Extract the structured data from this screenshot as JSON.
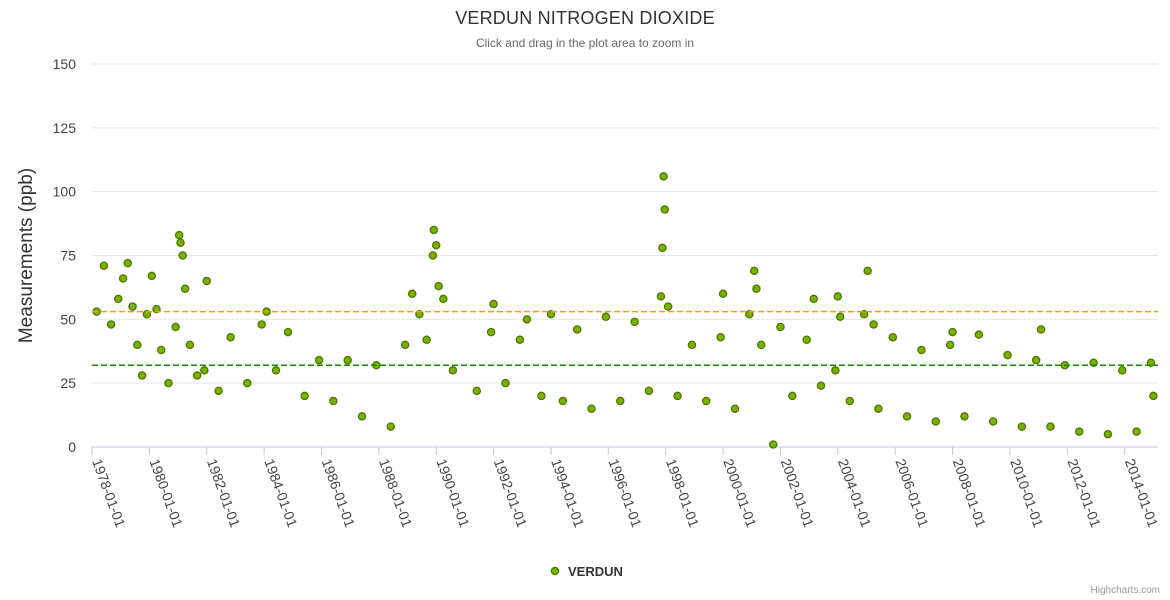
{
  "chart_data": {
    "type": "scatter",
    "title": "VERDUN NITROGEN DIOXIDE",
    "subtitle": "Click and drag in the plot area to zoom in",
    "ylabel": "Measurements (ppb)",
    "ylim": [
      0,
      150
    ],
    "y_ticks": [
      0,
      25,
      50,
      75,
      100,
      125,
      150
    ],
    "x_ticks": [
      "1978-01-01",
      "1980-01-01",
      "1982-01-01",
      "1984-01-01",
      "1986-01-01",
      "1988-01-01",
      "1990-01-01",
      "1992-01-01",
      "1994-01-01",
      "1996-01-01",
      "1998-01-01",
      "2000-01-01",
      "2002-01-01",
      "2004-01-01",
      "2006-01-01",
      "2008-01-01",
      "2010-01-01",
      "2012-01-01",
      "2014-01-01"
    ],
    "xlim": [
      "1978-01-01",
      "2015-03-01"
    ],
    "grid": true,
    "legend_position": "bottom-center",
    "series": [
      {
        "name": "VERDUN",
        "color": "#7cb000",
        "border_color": "#4a7a00",
        "points": [
          [
            "1978-03-01",
            53
          ],
          [
            "1978-06-01",
            71
          ],
          [
            "1978-09-01",
            48
          ],
          [
            "1978-12-01",
            58
          ],
          [
            "1979-02-01",
            66
          ],
          [
            "1979-04-01",
            72
          ],
          [
            "1979-06-01",
            55
          ],
          [
            "1979-08-01",
            40
          ],
          [
            "1979-10-01",
            28
          ],
          [
            "1979-12-01",
            52
          ],
          [
            "1980-02-01",
            67
          ],
          [
            "1980-04-01",
            54
          ],
          [
            "1980-06-01",
            38
          ],
          [
            "1980-09-01",
            25
          ],
          [
            "1980-12-01",
            47
          ],
          [
            "1981-01-15",
            83
          ],
          [
            "1981-02-01",
            80
          ],
          [
            "1981-03-01",
            75
          ],
          [
            "1981-04-01",
            62
          ],
          [
            "1981-06-01",
            40
          ],
          [
            "1981-09-01",
            28
          ],
          [
            "1981-12-01",
            30
          ],
          [
            "1982-01-01",
            65
          ],
          [
            "1982-06-01",
            22
          ],
          [
            "1982-11-01",
            43
          ],
          [
            "1983-06-01",
            25
          ],
          [
            "1983-12-01",
            48
          ],
          [
            "1984-02-01",
            53
          ],
          [
            "1984-06-01",
            30
          ],
          [
            "1984-11-01",
            45
          ],
          [
            "1985-06-01",
            20
          ],
          [
            "1985-12-01",
            34
          ],
          [
            "1986-06-01",
            18
          ],
          [
            "1986-12-01",
            34
          ],
          [
            "1987-06-01",
            12
          ],
          [
            "1987-12-01",
            32
          ],
          [
            "1988-06-01",
            8
          ],
          [
            "1988-12-01",
            40
          ],
          [
            "1989-03-01",
            60
          ],
          [
            "1989-06-01",
            52
          ],
          [
            "1989-09-01",
            42
          ],
          [
            "1989-11-20",
            75
          ],
          [
            "1989-12-01",
            85
          ],
          [
            "1990-01-01",
            79
          ],
          [
            "1990-02-01",
            63
          ],
          [
            "1990-04-01",
            58
          ],
          [
            "1990-08-01",
            30
          ],
          [
            "1991-06-01",
            22
          ],
          [
            "1991-12-01",
            45
          ],
          [
            "1992-01-01",
            56
          ],
          [
            "1992-06-01",
            25
          ],
          [
            "1992-12-01",
            42
          ],
          [
            "1993-03-01",
            50
          ],
          [
            "1993-09-01",
            20
          ],
          [
            "1994-01-01",
            52
          ],
          [
            "1994-06-01",
            18
          ],
          [
            "1994-12-01",
            46
          ],
          [
            "1995-06-01",
            15
          ],
          [
            "1995-12-01",
            51
          ],
          [
            "1996-06-01",
            18
          ],
          [
            "1996-12-01",
            49
          ],
          [
            "1997-06-01",
            22
          ],
          [
            "1997-11-01",
            59
          ],
          [
            "1997-11-20",
            78
          ],
          [
            "1997-12-05",
            106
          ],
          [
            "1997-12-20",
            93
          ],
          [
            "1998-02-01",
            55
          ],
          [
            "1998-06-01",
            20
          ],
          [
            "1998-12-01",
            40
          ],
          [
            "1999-06-01",
            18
          ],
          [
            "1999-12-01",
            43
          ],
          [
            "2000-01-01",
            60
          ],
          [
            "2000-06-01",
            15
          ],
          [
            "2000-12-01",
            52
          ],
          [
            "2001-02-01",
            69
          ],
          [
            "2001-03-01",
            62
          ],
          [
            "2001-05-01",
            40
          ],
          [
            "2001-10-01",
            1
          ],
          [
            "2002-01-01",
            47
          ],
          [
            "2002-06-01",
            20
          ],
          [
            "2002-12-01",
            42
          ],
          [
            "2003-03-01",
            58
          ],
          [
            "2003-06-01",
            24
          ],
          [
            "2003-12-01",
            30
          ],
          [
            "2004-01-01",
            59
          ],
          [
            "2004-02-01",
            51
          ],
          [
            "2004-06-01",
            18
          ],
          [
            "2004-12-01",
            52
          ],
          [
            "2005-01-15",
            69
          ],
          [
            "2005-04-01",
            48
          ],
          [
            "2005-06-01",
            15
          ],
          [
            "2005-12-01",
            43
          ],
          [
            "2006-06-01",
            12
          ],
          [
            "2006-12-01",
            38
          ],
          [
            "2007-06-01",
            10
          ],
          [
            "2007-12-01",
            40
          ],
          [
            "2008-01-01",
            45
          ],
          [
            "2008-06-01",
            12
          ],
          [
            "2008-12-01",
            44
          ],
          [
            "2009-06-01",
            10
          ],
          [
            "2009-12-01",
            36
          ],
          [
            "2010-06-01",
            8
          ],
          [
            "2010-12-01",
            34
          ],
          [
            "2011-02-01",
            46
          ],
          [
            "2011-06-01",
            8
          ],
          [
            "2011-12-01",
            32
          ],
          [
            "2012-06-01",
            6
          ],
          [
            "2012-12-01",
            33
          ],
          [
            "2013-06-01",
            5
          ],
          [
            "2013-12-01",
            30
          ],
          [
            "2014-06-01",
            6
          ],
          [
            "2014-12-01",
            33
          ],
          [
            "2015-01-01",
            20
          ]
        ]
      }
    ],
    "plot_lines": [
      {
        "value": 53,
        "color": "#f5a000"
      },
      {
        "value": 32,
        "color": "#138a00"
      }
    ]
  },
  "credits": "Highcharts.com"
}
